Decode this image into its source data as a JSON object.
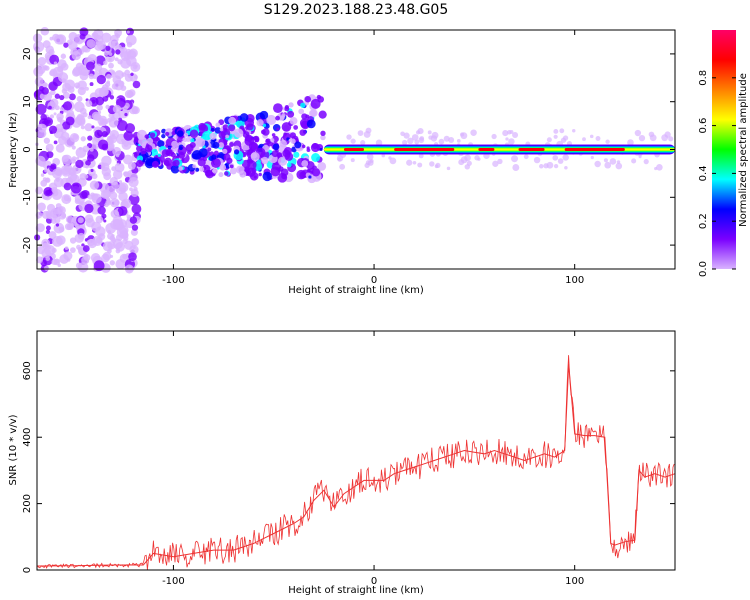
{
  "title": "S129.2023.188.23.48.G05",
  "chart_data": [
    {
      "type": "heatmap",
      "xlabel": "Height of straight line (km)",
      "ylabel": "Frequency (Hz)",
      "xlim": [
        -168,
        150
      ],
      "ylim": [
        -25,
        25
      ],
      "xticks": [
        -100,
        0,
        100
      ],
      "yticks": [
        -20,
        -10,
        0,
        10,
        20
      ],
      "colorbar": {
        "label": "Normalized spectral amplitude",
        "range": [
          0.0,
          1.0
        ],
        "ticks": [
          0.0,
          0.2,
          0.4,
          0.6,
          0.8
        ],
        "colors": [
          "#d9b3ff",
          "#7a00ff",
          "#0000ff",
          "#00ffff",
          "#00ff00",
          "#ffff00",
          "#ff8000",
          "#ff0000",
          "#ff0066"
        ]
      },
      "features": {
        "dense_noise_region_x": [
          -168,
          -118
        ],
        "scattered_signal_x": [
          -118,
          -25
        ],
        "carrier_line_x": [
          -25,
          150
        ],
        "carrier_frequency_hz": 0
      }
    },
    {
      "type": "line",
      "xlabel": "Height of straight line (km)",
      "ylabel": "SNR (10 * v/v)",
      "xlim": [
        -168,
        150
      ],
      "ylim": [
        0,
        720
      ],
      "xticks": [
        -100,
        0,
        100
      ],
      "yticks": [
        0,
        200,
        400,
        600
      ],
      "series": [
        {
          "color": "#ee3333",
          "x": [
            -168,
            -150,
            -130,
            -115,
            -110,
            -100,
            -90,
            -80,
            -70,
            -60,
            -50,
            -40,
            -35,
            -30,
            -25,
            -20,
            -15,
            -10,
            -5,
            0,
            5,
            10,
            15,
            20,
            25,
            30,
            35,
            40,
            45,
            50,
            55,
            60,
            65,
            70,
            75,
            80,
            85,
            90,
            95,
            97,
            100,
            105,
            110,
            115,
            118,
            120,
            125,
            130,
            132,
            135,
            140,
            145,
            150
          ],
          "values": [
            12,
            13,
            15,
            15,
            50,
            40,
            50,
            60,
            60,
            80,
            110,
            140,
            160,
            210,
            240,
            190,
            230,
            250,
            270,
            270,
            270,
            290,
            300,
            310,
            320,
            330,
            340,
            350,
            360,
            355,
            350,
            360,
            350,
            340,
            330,
            340,
            350,
            340,
            360,
            620,
            410,
            405,
            405,
            400,
            80,
            75,
            85,
            90,
            300,
            280,
            290,
            280,
            290
          ]
        }
      ]
    }
  ]
}
